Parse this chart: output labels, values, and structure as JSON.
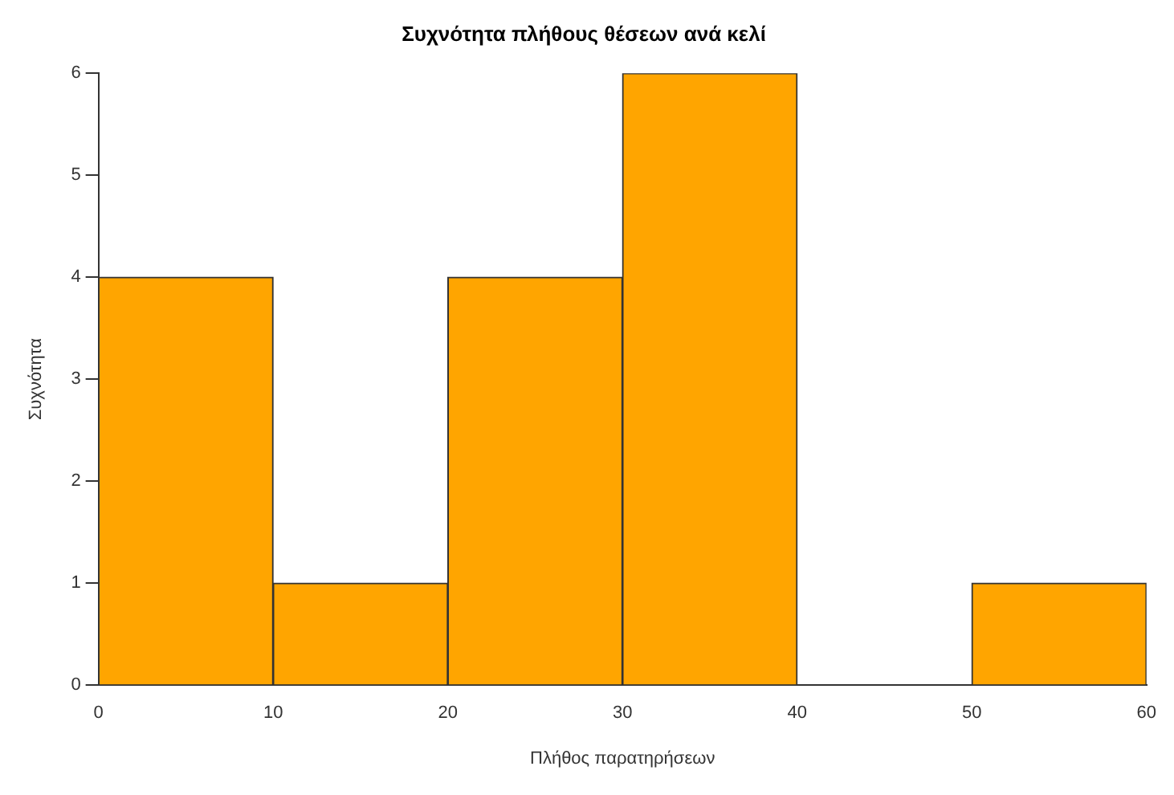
{
  "chart_data": {
    "type": "histogram",
    "title": "Συχνότητα πλήθους θέσεων ανά κελί",
    "xlabel": "Πλήθος παρατηρήσεων",
    "ylabel": "Συχνότητα",
    "bins": [
      0,
      10,
      20,
      30,
      40,
      50,
      60
    ],
    "values": [
      4,
      1,
      4,
      6,
      0,
      1
    ],
    "color": "#ffa500",
    "xlim": [
      0,
      60
    ],
    "xticks": [
      0,
      10,
      20,
      30,
      40,
      50,
      60
    ],
    "ylim": [
      0,
      6
    ],
    "yticks": [
      0,
      1,
      2,
      3,
      4,
      5,
      6
    ],
    "grid": false,
    "legend": false
  }
}
